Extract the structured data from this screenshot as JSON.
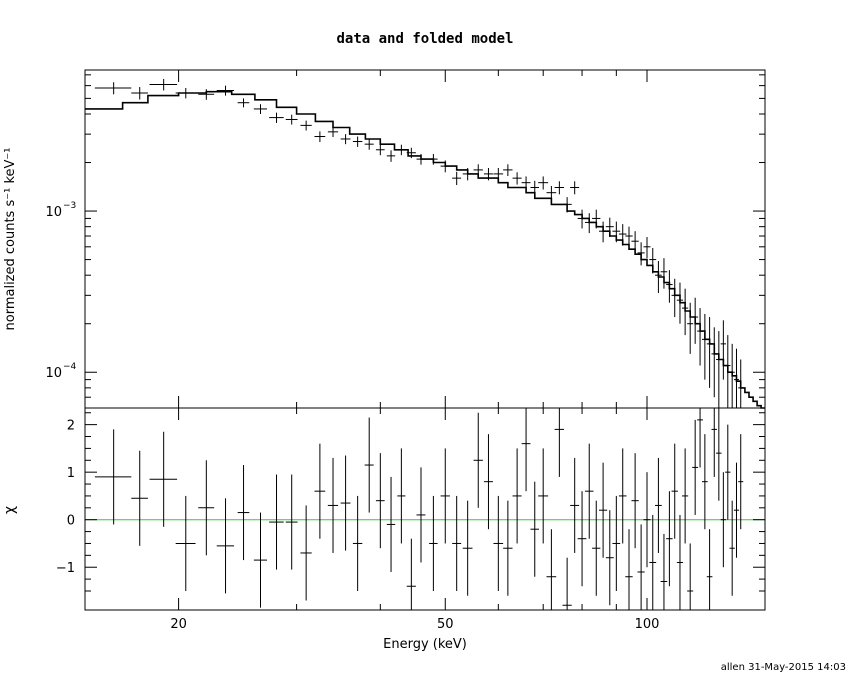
{
  "title": "data and folded model",
  "credit": "allen 31-May-2015 14:03",
  "chart_data": [
    {
      "type": "line",
      "panel": "top",
      "ylabel": "normalized counts s⁻¹ keV⁻¹",
      "xscale": "log",
      "yscale": "log",
      "xlim": [
        14.5,
        150
      ],
      "ylim": [
        6e-05,
        0.0075
      ],
      "yticks": [
        {
          "value": 0.001,
          "base": "10",
          "exp": "−3"
        },
        {
          "value": 0.0001,
          "base": "10",
          "exp": "−4"
        }
      ],
      "data": {
        "name": "data",
        "points": [
          [
            16.0,
            0.0058,
            1.0,
            0.0005
          ],
          [
            17.5,
            0.0054,
            0.5,
            0.00048
          ],
          [
            19.0,
            0.0061,
            0.9,
            0.0005
          ],
          [
            20.5,
            0.0054,
            0.7,
            0.0004
          ],
          [
            22.0,
            0.0053,
            0.6,
            0.0004
          ],
          [
            23.5,
            0.0056,
            0.7,
            0.0004
          ],
          [
            25.0,
            0.0047,
            0.5,
            0.0003
          ],
          [
            26.5,
            0.0043,
            0.6,
            0.0003
          ],
          [
            28.0,
            0.0038,
            0.7,
            0.00028
          ],
          [
            29.5,
            0.0037,
            0.6,
            0.00026
          ],
          [
            31.0,
            0.0034,
            0.6,
            0.00024
          ],
          [
            32.5,
            0.0029,
            0.6,
            0.00022
          ],
          [
            34.0,
            0.0031,
            0.6,
            0.00022
          ],
          [
            35.5,
            0.0028,
            0.6,
            0.0002
          ],
          [
            37.0,
            0.0027,
            0.6,
            0.0002
          ],
          [
            38.5,
            0.0026,
            0.6,
            0.0002
          ],
          [
            40.0,
            0.0024,
            0.6,
            0.00018
          ],
          [
            41.5,
            0.0022,
            0.6,
            0.00018
          ],
          [
            43.0,
            0.0024,
            0.6,
            0.00018
          ],
          [
            44.5,
            0.0023,
            0.7,
            0.00017
          ],
          [
            46.0,
            0.0021,
            0.7,
            0.00016
          ],
          [
            48.0,
            0.0021,
            0.7,
            0.00016
          ],
          [
            50.0,
            0.0019,
            0.8,
            0.00016
          ],
          [
            52.0,
            0.0016,
            0.8,
            0.00015
          ],
          [
            54.0,
            0.0017,
            0.9,
            0.00015
          ],
          [
            56.0,
            0.0018,
            0.9,
            0.00015
          ],
          [
            58.0,
            0.0017,
            0.9,
            0.00015
          ],
          [
            60.0,
            0.0017,
            1.0,
            0.00015
          ],
          [
            62.0,
            0.0018,
            1.0,
            0.00015
          ],
          [
            64.0,
            0.0016,
            1.0,
            0.00014
          ],
          [
            66.0,
            0.0015,
            1.0,
            0.00014
          ],
          [
            68.0,
            0.0014,
            1.0,
            0.00014
          ],
          [
            70.0,
            0.0015,
            1.2,
            0.00014
          ],
          [
            72.0,
            0.0013,
            1.2,
            0.00013
          ],
          [
            74.0,
            0.0014,
            1.2,
            0.00013
          ],
          [
            76.0,
            0.0011,
            1.2,
            0.00012
          ],
          [
            78.0,
            0.0014,
            1.2,
            0.00013
          ],
          [
            80.0,
            0.0009,
            1.2,
            0.00012
          ],
          [
            82.0,
            0.00085,
            1.2,
            0.00012
          ],
          [
            84.0,
            0.0009,
            1.2,
            0.00012
          ],
          [
            86.0,
            0.00075,
            1.2,
            0.00011
          ],
          [
            88.0,
            0.0008,
            1.2,
            0.00011
          ],
          [
            90.0,
            0.00075,
            1.2,
            0.00011
          ],
          [
            92.0,
            0.00072,
            1.2,
            0.00011
          ],
          [
            94.0,
            0.0007,
            1.2,
            0.0001
          ],
          [
            96.0,
            0.00065,
            1.2,
            0.0001
          ],
          [
            98.0,
            0.00055,
            1.2,
            9e-05
          ],
          [
            100.0,
            0.0006,
            1.2,
            9e-05
          ],
          [
            102.0,
            0.0005,
            1.2,
            9e-05
          ],
          [
            104.0,
            0.0004,
            1.2,
            9e-05
          ],
          [
            106.0,
            0.00042,
            1.2,
            9e-05
          ],
          [
            108.0,
            0.00035,
            1.2,
            8e-05
          ],
          [
            110.0,
            0.0003,
            1.2,
            8e-05
          ],
          [
            112.0,
            0.00028,
            1.2,
            8e-05
          ],
          [
            114.0,
            0.00025,
            1.2,
            8e-05
          ],
          [
            116.0,
            0.0002,
            1.2,
            7e-05
          ],
          [
            118.0,
            0.00022,
            1.2,
            7e-05
          ],
          [
            120.0,
            0.00018,
            1.2,
            7e-05
          ],
          [
            122.0,
            0.00016,
            1.2,
            7e-05
          ],
          [
            124.0,
            0.00015,
            1.2,
            7e-05
          ],
          [
            126.0,
            0.00013,
            1.2,
            6e-05
          ],
          [
            128.0,
            0.00012,
            1.2,
            6e-05
          ],
          [
            130.0,
            0.00015,
            1.2,
            6e-05
          ],
          [
            132.0,
            0.00011,
            1.2,
            6e-05
          ],
          [
            134.0,
            0.0001,
            1.2,
            5e-05
          ],
          [
            136.0,
            9e-05,
            1.2,
            5e-05
          ],
          [
            138.0,
            8e-05,
            1.2,
            4e-05
          ]
        ]
      },
      "model": {
        "name": "folded model",
        "steps": [
          [
            14.5,
            0.0043
          ],
          [
            16.5,
            0.0047
          ],
          [
            18.0,
            0.0052
          ],
          [
            20.0,
            0.0054
          ],
          [
            22.0,
            0.0055
          ],
          [
            24.0,
            0.0053
          ],
          [
            26.0,
            0.0049
          ],
          [
            28.0,
            0.0044
          ],
          [
            30.0,
            0.004
          ],
          [
            32.0,
            0.0036
          ],
          [
            34.0,
            0.0033
          ],
          [
            36.0,
            0.003
          ],
          [
            38.0,
            0.0028
          ],
          [
            40.0,
            0.0026
          ],
          [
            42.0,
            0.0024
          ],
          [
            44.0,
            0.0022
          ],
          [
            46.0,
            0.0021
          ],
          [
            48.0,
            0.002
          ],
          [
            50.0,
            0.0019
          ],
          [
            52.0,
            0.0018
          ],
          [
            54.0,
            0.0017
          ],
          [
            56.0,
            0.0016
          ],
          [
            58.0,
            0.0016
          ],
          [
            60.0,
            0.0015
          ],
          [
            62.0,
            0.0014
          ],
          [
            64.0,
            0.0014
          ],
          [
            66.0,
            0.0013
          ],
          [
            68.0,
            0.0012
          ],
          [
            70.0,
            0.0012
          ],
          [
            72.0,
            0.0011
          ],
          [
            74.0,
            0.0011
          ],
          [
            76.0,
            0.001
          ],
          [
            78.0,
            0.00095
          ],
          [
            80.0,
            0.0009
          ],
          [
            82.0,
            0.00085
          ],
          [
            84.0,
            0.0008
          ],
          [
            86.0,
            0.00075
          ],
          [
            88.0,
            0.0007
          ],
          [
            90.0,
            0.00066
          ],
          [
            92.0,
            0.00062
          ],
          [
            94.0,
            0.00058
          ],
          [
            96.0,
            0.00054
          ],
          [
            98.0,
            0.0005
          ],
          [
            100.0,
            0.00046
          ],
          [
            102.0,
            0.00042
          ],
          [
            104.0,
            0.00039
          ],
          [
            106.0,
            0.00036
          ],
          [
            108.0,
            0.00033
          ],
          [
            110.0,
            0.0003
          ],
          [
            112.0,
            0.00027
          ],
          [
            114.0,
            0.00024
          ],
          [
            116.0,
            0.00022
          ],
          [
            118.0,
            0.0002
          ],
          [
            120.0,
            0.00018
          ],
          [
            122.0,
            0.00016
          ],
          [
            124.0,
            0.00015
          ],
          [
            126.0,
            0.00013
          ],
          [
            128.0,
            0.00012
          ],
          [
            130.0,
            0.00011
          ],
          [
            132.0,
            0.0001
          ],
          [
            134.0,
            9.5e-05
          ],
          [
            136.0,
            8.8e-05
          ],
          [
            138.0,
            8e-05
          ],
          [
            140.0,
            7.5e-05
          ],
          [
            142.0,
            7e-05
          ],
          [
            144.0,
            6.6e-05
          ],
          [
            146.0,
            6.2e-05
          ],
          [
            148.0,
            6e-05
          ],
          [
            150.0,
            6e-05
          ]
        ]
      }
    },
    {
      "type": "scatter",
      "panel": "bottom",
      "xlabel": "Energy (keV)",
      "ylabel": "χ",
      "xscale": "log",
      "xlim": [
        14.5,
        150
      ],
      "ylim": [
        -1.9,
        2.35
      ],
      "xticks": [
        20,
        50,
        100
      ],
      "yticks": [
        -1,
        0,
        1,
        2
      ],
      "yticklabels": [
        "−1",
        "0",
        "1",
        "2"
      ],
      "reference_line": {
        "y": 0,
        "color": "#33cc33"
      },
      "residuals": [
        [
          16.0,
          0.9,
          1.0,
          1.0
        ],
        [
          17.5,
          0.45,
          0.5,
          1.0
        ],
        [
          19.0,
          0.85,
          0.9,
          1.0
        ],
        [
          20.5,
          -0.5,
          0.7,
          1.0
        ],
        [
          22.0,
          0.25,
          0.6,
          1.0
        ],
        [
          23.5,
          -0.55,
          0.7,
          1.0
        ],
        [
          25.0,
          0.15,
          0.5,
          1.0
        ],
        [
          26.5,
          -0.85,
          0.6,
          1.0
        ],
        [
          28.0,
          -0.05,
          0.7,
          1.0
        ],
        [
          29.5,
          -0.05,
          0.6,
          1.0
        ],
        [
          31.0,
          -0.7,
          0.6,
          1.0
        ],
        [
          32.5,
          0.6,
          0.6,
          1.0
        ],
        [
          34.0,
          0.3,
          0.6,
          1.0
        ],
        [
          35.5,
          0.35,
          0.6,
          1.0
        ],
        [
          37.0,
          -0.5,
          0.6,
          1.0
        ],
        [
          38.5,
          1.15,
          0.6,
          1.0
        ],
        [
          40.0,
          0.4,
          0.6,
          1.0
        ],
        [
          41.5,
          -0.1,
          0.6,
          1.0
        ],
        [
          43.0,
          0.5,
          0.6,
          1.0
        ],
        [
          44.5,
          -1.4,
          0.7,
          1.0
        ],
        [
          46.0,
          0.1,
          0.7,
          1.0
        ],
        [
          48.0,
          -0.5,
          0.7,
          1.0
        ],
        [
          50.0,
          0.5,
          0.8,
          1.0
        ],
        [
          52.0,
          -0.5,
          0.8,
          1.0
        ],
        [
          54.0,
          -0.6,
          0.9,
          1.0
        ],
        [
          56.0,
          1.25,
          0.9,
          1.0
        ],
        [
          58.0,
          0.8,
          0.9,
          1.0
        ],
        [
          60.0,
          -0.5,
          1.0,
          1.0
        ],
        [
          62.0,
          -0.6,
          1.0,
          1.0
        ],
        [
          64.0,
          0.5,
          1.0,
          1.0
        ],
        [
          66.0,
          1.6,
          1.0,
          1.0
        ],
        [
          68.0,
          -0.2,
          1.0,
          1.0
        ],
        [
          70.0,
          0.5,
          1.2,
          1.0
        ],
        [
          72.0,
          -1.2,
          1.2,
          1.0
        ],
        [
          74.0,
          1.9,
          1.2,
          1.0
        ],
        [
          76.0,
          -1.8,
          1.2,
          1.0
        ],
        [
          78.0,
          0.3,
          1.2,
          1.0
        ],
        [
          80.0,
          -0.4,
          1.2,
          1.0
        ],
        [
          82.0,
          0.6,
          1.2,
          1.0
        ],
        [
          84.0,
          -0.6,
          1.2,
          1.0
        ],
        [
          86.0,
          0.2,
          1.2,
          1.0
        ],
        [
          88.0,
          -0.8,
          1.2,
          1.0
        ],
        [
          90.0,
          -0.5,
          1.2,
          1.0
        ],
        [
          92.0,
          0.5,
          1.2,
          1.0
        ],
        [
          94.0,
          -1.2,
          1.2,
          1.0
        ],
        [
          96.0,
          0.4,
          1.2,
          1.0
        ],
        [
          98.0,
          -1.1,
          1.2,
          1.0
        ],
        [
          100.0,
          0.0,
          1.2,
          1.0
        ],
        [
          102.0,
          -0.9,
          1.2,
          1.0
        ],
        [
          104.0,
          0.3,
          1.2,
          1.0
        ],
        [
          106.0,
          -1.3,
          1.2,
          1.0
        ],
        [
          108.0,
          -0.4,
          1.2,
          1.0
        ],
        [
          110.0,
          0.6,
          1.2,
          1.0
        ],
        [
          112.0,
          -0.9,
          1.2,
          1.0
        ],
        [
          114.0,
          0.5,
          1.2,
          1.0
        ],
        [
          116.0,
          -1.5,
          1.2,
          1.0
        ],
        [
          118.0,
          1.1,
          1.2,
          1.0
        ],
        [
          120.0,
          2.1,
          1.2,
          1.0
        ],
        [
          122.0,
          0.8,
          1.2,
          1.0
        ],
        [
          124.0,
          -1.2,
          1.2,
          1.0
        ],
        [
          126.0,
          1.9,
          1.2,
          1.0
        ],
        [
          128.0,
          1.4,
          1.2,
          1.0
        ],
        [
          130.0,
          0.0,
          1.2,
          1.0
        ],
        [
          132.0,
          1.0,
          1.2,
          1.0
        ],
        [
          134.0,
          -0.6,
          1.2,
          1.0
        ],
        [
          136.0,
          0.2,
          1.2,
          1.0
        ],
        [
          138.0,
          0.8,
          1.2,
          1.0
        ]
      ]
    }
  ]
}
